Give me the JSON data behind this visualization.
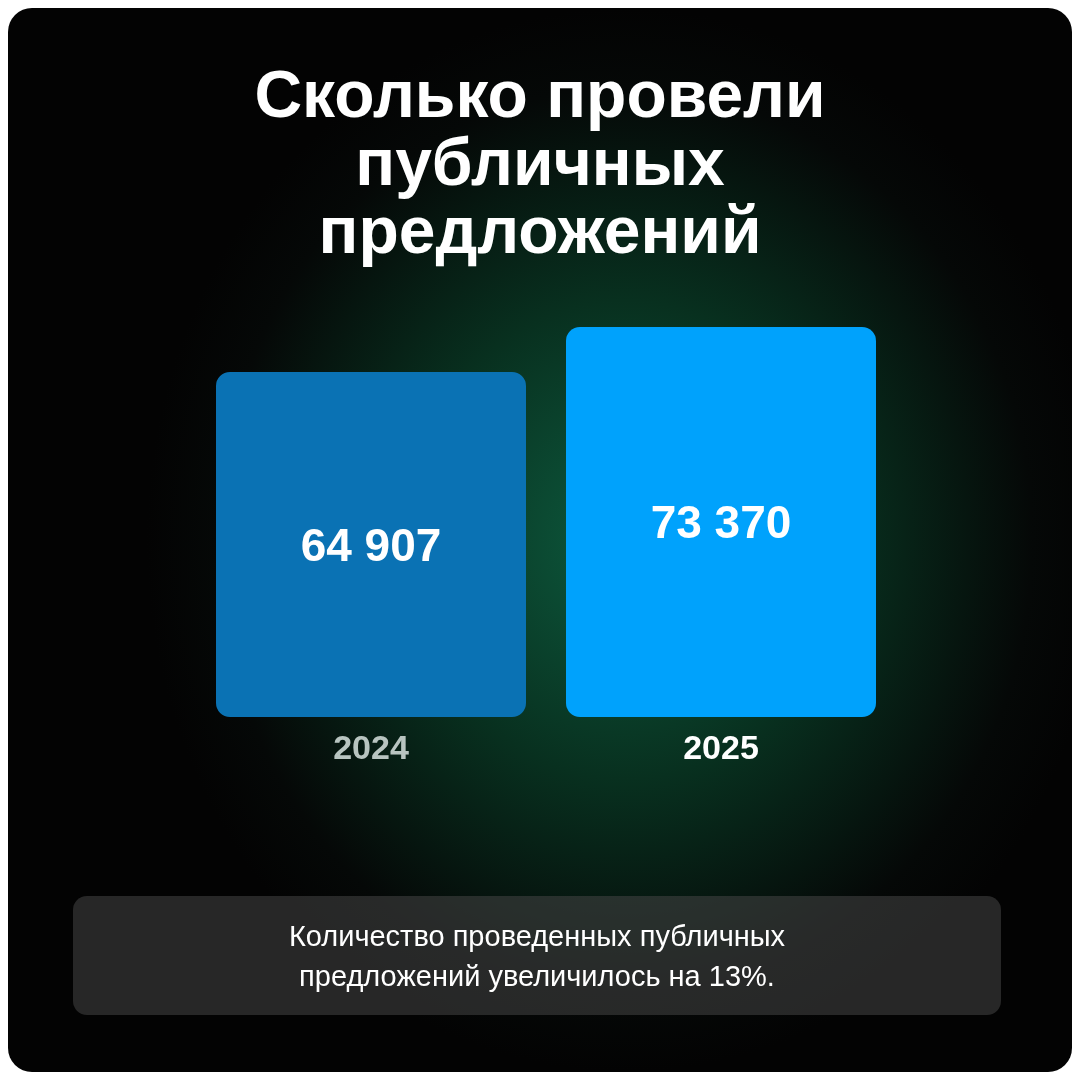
{
  "chart_data": {
    "type": "bar",
    "title": "Сколько провели публичных предложений",
    "categories": [
      "2024",
      "2025"
    ],
    "values": [
      64907,
      73370
    ],
    "colors": [
      "#0a72b4",
      "#00a2fc"
    ],
    "value_labels": [
      "64 907",
      "73 370"
    ],
    "annotations": [
      "Количество проведенных публичных предложений увеличилось на 13%."
    ]
  }
}
